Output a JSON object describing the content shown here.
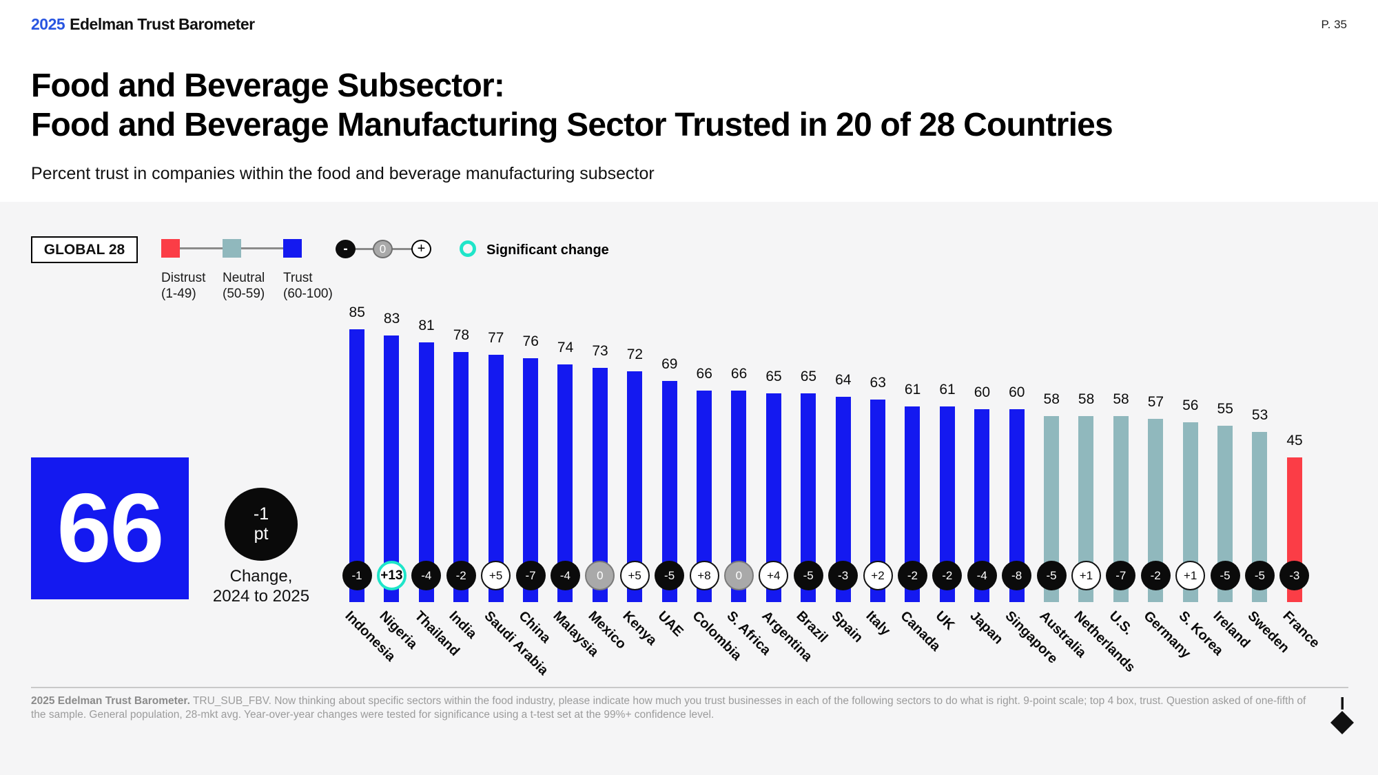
{
  "header": {
    "logo_year": "2025",
    "logo_name": "Edelman Trust Barometer",
    "page_number": "P. 35"
  },
  "title": {
    "line1": "Food and Beverage Subsector:",
    "line2": "Food and Beverage Manufacturing Sector Trusted in 20 of 28 Countries"
  },
  "subtitle": "Percent trust in companies within the food and beverage manufacturing subsector",
  "legend": {
    "global_label": "GLOBAL 28",
    "scale": [
      {
        "label": "Distrust",
        "range": "(1-49)",
        "color": "#fb3d46"
      },
      {
        "label": "Neutral",
        "range": "(50-59)",
        "color": "#90b8bd"
      },
      {
        "label": "Trust",
        "range": "(60-100)",
        "color": "#1419f0"
      }
    ],
    "change_markers": [
      {
        "symbol": "-",
        "style": "negative"
      },
      {
        "symbol": "0",
        "style": "zero"
      },
      {
        "symbol": "+",
        "style": "positive"
      }
    ],
    "significant": {
      "label": "Significant change",
      "color": "#1fe5c9"
    }
  },
  "global_summary": {
    "score": "66",
    "change_value": "-1",
    "change_unit": "pt",
    "caption_line1": "Change,",
    "caption_line2": "2024 to 2025"
  },
  "chart_data": {
    "type": "bar",
    "title": "Percent trust in companies within the food and beverage manufacturing subsector",
    "ylabel": "Percent trust",
    "ylim": [
      0,
      100
    ],
    "grid": false,
    "bands": {
      "distrust": "1-49",
      "neutral": "50-59",
      "trust": "60-100"
    },
    "colors": {
      "trust": "#1419f0",
      "neutral": "#90b8bd",
      "distrust": "#fb3d46",
      "significant_ring": "#1fe5c9"
    },
    "categories": [
      "Indonesia",
      "Nigeria",
      "Thailand",
      "India",
      "Saudi Arabia",
      "China",
      "Malaysia",
      "Mexico",
      "Kenya",
      "UAE",
      "Colombia",
      "S. Africa",
      "Argentina",
      "Brazil",
      "Spain",
      "Italy",
      "Canada",
      "UK",
      "Japan",
      "Singapore",
      "Australia",
      "Netherlands",
      "U.S.",
      "Germany",
      "S. Korea",
      "Ireland",
      "Sweden",
      "France"
    ],
    "values": [
      85,
      83,
      81,
      78,
      77,
      76,
      74,
      73,
      72,
      69,
      66,
      66,
      65,
      65,
      64,
      63,
      61,
      61,
      60,
      60,
      58,
      58,
      58,
      57,
      56,
      55,
      53,
      45
    ],
    "changes": [
      "-1",
      "+13",
      "-4",
      "-2",
      "+5",
      "-7",
      "-4",
      "0",
      "+5",
      "-5",
      "+8",
      "0",
      "+4",
      "-5",
      "-3",
      "+2",
      "-2",
      "-2",
      "-4",
      "-8",
      "-5",
      "+1",
      "-7",
      "-2",
      "+1",
      "-5",
      "-5",
      "-3"
    ],
    "significant_indices": [
      1
    ]
  },
  "footnote": {
    "bold": "2025 Edelman Trust Barometer.",
    "text": " TRU_SUB_FBV. Now thinking about specific sectors within the food industry, please indicate how much you trust businesses in each of the following sectors to do what is right. 9-point scale; top 4 box, trust. Question asked of one-fifth of the sample. General population, 28-mkt avg. Year-over-year changes were tested for significance using a t-test set at the 99%+ confidence level."
  }
}
